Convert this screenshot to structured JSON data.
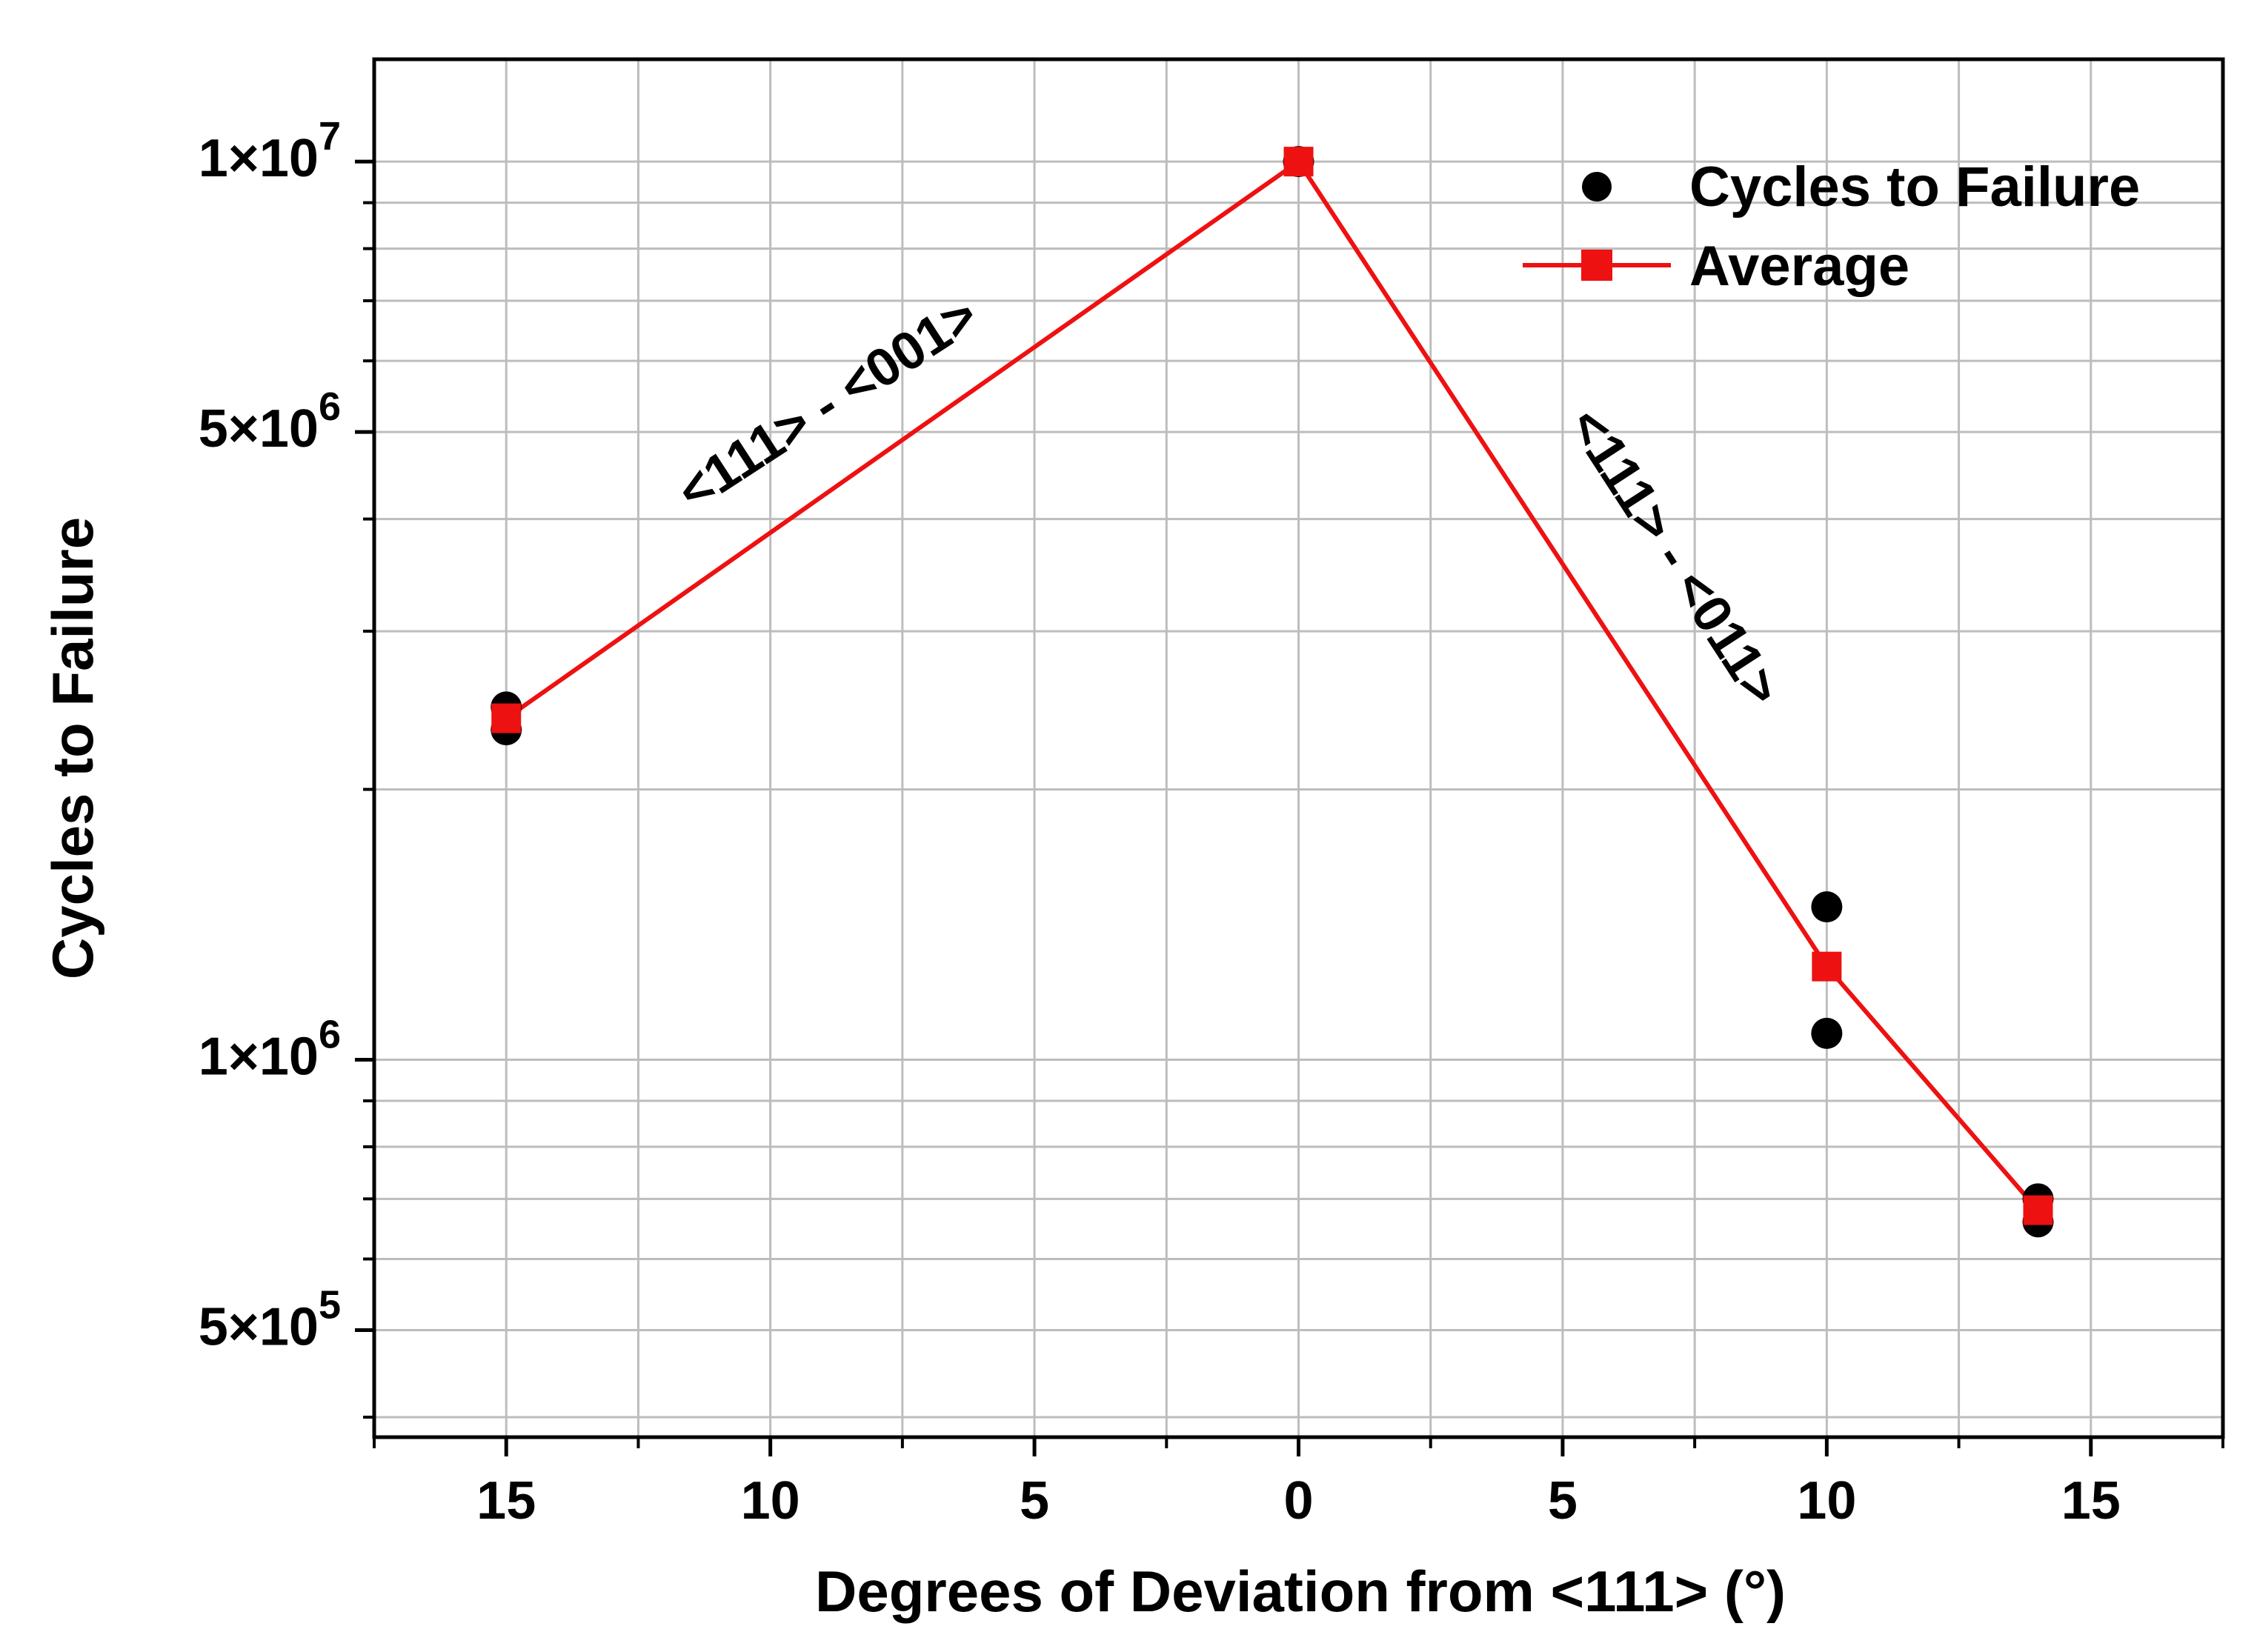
{
  "chart_data": {
    "type": "scatter",
    "title": "",
    "xlabel": "Degrees of Deviation from <111> (°)",
    "ylabel": "Cycles to Failure",
    "y_scale": "log",
    "xlim": [
      -17.5,
      17.5
    ],
    "ylim": [
      380000,
      13000000
    ],
    "grid": true,
    "x_ticks": [
      -15,
      -10,
      -5,
      0,
      5,
      10,
      15
    ],
    "x_tick_labels": [
      "15",
      "10",
      "5",
      "0",
      "5",
      "10",
      "15"
    ],
    "y_ticks": [
      500000,
      1000000,
      5000000,
      10000000
    ],
    "y_tick_labels": [
      {
        "mantissa": "5×10",
        "exp": "5"
      },
      {
        "mantissa": "1×10",
        "exp": "6"
      },
      {
        "mantissa": "5×10",
        "exp": "6"
      },
      {
        "mantissa": "1×10",
        "exp": "7"
      }
    ],
    "series": [
      {
        "name": "Cycles to Failure",
        "style": "markers",
        "marker": "circle",
        "color": "#000000",
        "x": [
          -15,
          -15,
          0,
          10,
          10,
          14,
          14
        ],
        "y": [
          2470000,
          2330000,
          10000000,
          1480000,
          1070000,
          700000,
          660000
        ]
      },
      {
        "name": "Average",
        "style": "line+markers",
        "marker": "square",
        "color": "#ee1111",
        "x": [
          -15,
          0,
          10,
          14
        ],
        "y": [
          2400000,
          10000000,
          1270000,
          680000
        ]
      }
    ],
    "legend": {
      "position": "top-right",
      "entries": [
        "Cycles to Failure",
        "Average"
      ]
    },
    "annotations": [
      {
        "text": "<111> - <001>",
        "side": "left"
      },
      {
        "text": "<111> - <011>",
        "side": "right"
      }
    ]
  }
}
